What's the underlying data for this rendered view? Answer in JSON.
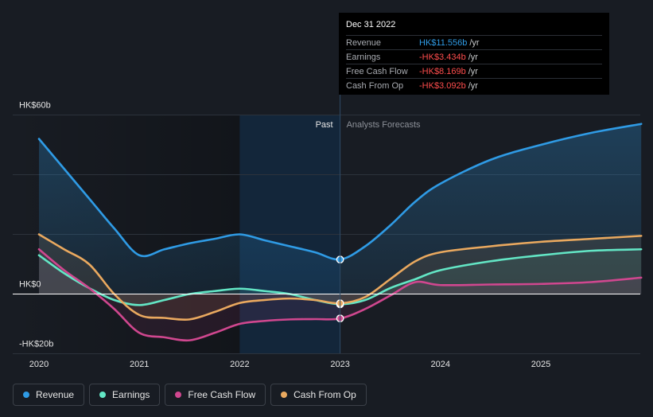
{
  "tooltip": {
    "date": "Dec 31 2022",
    "rows": [
      {
        "label": "Revenue",
        "value": "HK$11.556b",
        "unit": "/yr",
        "color": "#2f9be5"
      },
      {
        "label": "Earnings",
        "value": "-HK$3.434b",
        "unit": "/yr",
        "color": "#ff4d4d"
      },
      {
        "label": "Free Cash Flow",
        "value": "-HK$8.169b",
        "unit": "/yr",
        "color": "#ff4d4d"
      },
      {
        "label": "Cash From Op",
        "value": "-HK$3.092b",
        "unit": "/yr",
        "color": "#ff4d4d"
      }
    ]
  },
  "legend": [
    {
      "label": "Revenue",
      "color": "#2f9be5"
    },
    {
      "label": "Earnings",
      "color": "#63e6c5"
    },
    {
      "label": "Free Cash Flow",
      "color": "#d0478f"
    },
    {
      "label": "Cash From Op",
      "color": "#eaa95f"
    }
  ],
  "chart_data": {
    "type": "line",
    "title": "",
    "xlabel": "",
    "ylabel": "",
    "x_ticks": [
      "2020",
      "2021",
      "2022",
      "2023",
      "2024",
      "2025"
    ],
    "x_tick_values": [
      2020,
      2021,
      2022,
      2023,
      2024,
      2025
    ],
    "y_tick_labels": [
      "HK$60b",
      "HK$0",
      "-HK$20b"
    ],
    "y_tick_values": [
      60,
      0,
      -20
    ],
    "xlim": [
      2019.75,
      2026.0
    ],
    "ylim": [
      -20,
      60
    ],
    "grid_values": [
      40,
      20
    ],
    "past_label": "Past",
    "forecast_label": "Analysts Forecasts",
    "divider_x": 2023.0,
    "highlight_range": [
      2022.0,
      2023.0
    ],
    "series": [
      {
        "name": "Revenue",
        "color": "#2f9be5",
        "x": [
          2020.0,
          2020.25,
          2020.5,
          2020.75,
          2021.0,
          2021.25,
          2021.5,
          2021.75,
          2022.0,
          2022.25,
          2022.5,
          2022.75,
          2023.0,
          2023.25,
          2023.5,
          2023.75,
          2024.0,
          2024.5,
          2025.0,
          2025.5,
          2026.0
        ],
        "y": [
          52,
          42,
          32,
          22,
          13,
          15,
          17,
          18.5,
          20,
          18,
          16,
          14,
          11.6,
          16,
          23,
          31,
          37,
          45,
          50,
          54,
          57
        ]
      },
      {
        "name": "Earnings",
        "color": "#63e6c5",
        "x": [
          2020.0,
          2020.25,
          2020.5,
          2020.75,
          2021.0,
          2021.25,
          2021.5,
          2021.75,
          2022.0,
          2022.25,
          2022.5,
          2022.75,
          2023.0,
          2023.25,
          2023.5,
          2023.75,
          2024.0,
          2024.5,
          2025.0,
          2025.5,
          2026.0
        ],
        "y": [
          13,
          7,
          2,
          -2,
          -3.7,
          -2,
          0,
          1,
          1.8,
          1,
          0,
          -2,
          -3.4,
          -2,
          2,
          5,
          8,
          11,
          13,
          14.5,
          15
        ]
      },
      {
        "name": "Free Cash Flow",
        "color": "#d0478f",
        "x": [
          2020.0,
          2020.25,
          2020.5,
          2020.75,
          2021.0,
          2021.25,
          2021.5,
          2021.75,
          2022.0,
          2022.25,
          2022.5,
          2022.75,
          2023.0,
          2023.25,
          2023.5,
          2023.75,
          2024.0,
          2024.5,
          2025.0,
          2025.5,
          2026.0
        ],
        "y": [
          15,
          8,
          2,
          -5,
          -13,
          -14.5,
          -15.5,
          -13,
          -10,
          -9,
          -8.5,
          -8.4,
          -8.2,
          -5,
          -0.5,
          4,
          3,
          3.2,
          3.4,
          4,
          5.5
        ]
      },
      {
        "name": "Cash From Op",
        "color": "#eaa95f",
        "x": [
          2020.0,
          2020.25,
          2020.5,
          2020.75,
          2021.0,
          2021.25,
          2021.5,
          2021.75,
          2022.0,
          2022.25,
          2022.5,
          2022.75,
          2023.0,
          2023.25,
          2023.5,
          2023.75,
          2024.0,
          2024.5,
          2025.0,
          2025.5,
          2026.0
        ],
        "y": [
          20,
          15,
          10,
          0,
          -7,
          -8,
          -8.5,
          -6,
          -3,
          -2,
          -1.5,
          -2,
          -3.1,
          -1,
          5,
          11,
          14,
          16,
          17.5,
          18.5,
          19.5
        ]
      }
    ],
    "markers": [
      {
        "series": "Revenue",
        "x": 2023.0,
        "y": 11.556
      },
      {
        "series": "Earnings",
        "x": 2023.0,
        "y": -3.434
      },
      {
        "series": "Free Cash Flow",
        "x": 2023.0,
        "y": -8.169
      },
      {
        "series": "Cash From Op",
        "x": 2023.0,
        "y": -3.092
      }
    ]
  }
}
